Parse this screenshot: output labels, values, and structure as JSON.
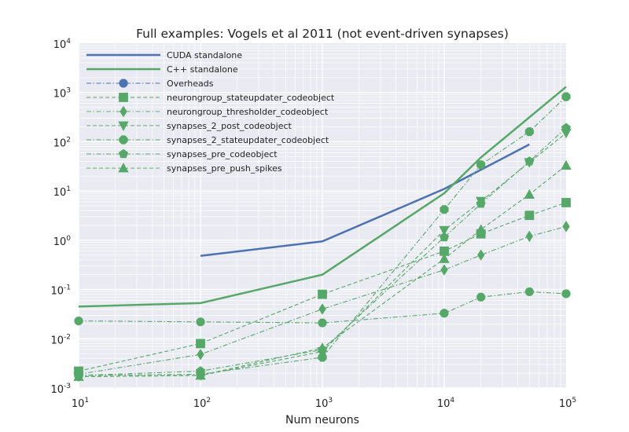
{
  "chart_data": {
    "type": "line",
    "title": "Full examples: Vogels et al 2011 (not event-driven synapses)",
    "xlabel": "Num neurons",
    "ylabel": "",
    "x_scale": "log",
    "y_scale": "log",
    "xlim": [
      10,
      100000
    ],
    "ylim": [
      0.001,
      10000
    ],
    "x_ticks": [
      {
        "base": "10",
        "exp": "1",
        "value": 10
      },
      {
        "base": "10",
        "exp": "2",
        "value": 100
      },
      {
        "base": "10",
        "exp": "3",
        "value": 1000
      },
      {
        "base": "10",
        "exp": "4",
        "value": 10000
      },
      {
        "base": "10",
        "exp": "5",
        "value": 100000
      }
    ],
    "y_ticks": [
      {
        "base": "10",
        "exp": "-3",
        "value": 0.001
      },
      {
        "base": "10",
        "exp": "-2",
        "value": 0.01
      },
      {
        "base": "10",
        "exp": "-1",
        "value": 0.1
      },
      {
        "base": "10",
        "exp": "0",
        "value": 1
      },
      {
        "base": "10",
        "exp": "1",
        "value": 10
      },
      {
        "base": "10",
        "exp": "2",
        "value": 100
      },
      {
        "base": "10",
        "exp": "3",
        "value": 1000
      },
      {
        "base": "10",
        "exp": "4",
        "value": 10000
      }
    ],
    "grid": true,
    "legend_position": "top-left",
    "background_color": "#eaeaf2",
    "series": [
      {
        "name": "CUDA standalone",
        "color": "#4c72b0",
        "line": "solid",
        "marker": "none",
        "points": [
          [
            100,
            0.48
          ],
          [
            1000,
            0.95
          ],
          [
            10000,
            11
          ],
          [
            20000,
            27
          ],
          [
            50000,
            88
          ]
        ]
      },
      {
        "name": "C++ standalone",
        "color": "#55a868",
        "line": "solid",
        "marker": "none",
        "points": [
          [
            10,
            0.045
          ],
          [
            100,
            0.053
          ],
          [
            1000,
            0.2
          ],
          [
            10000,
            9
          ],
          [
            20000,
            48
          ],
          [
            100000,
            1300
          ]
        ]
      },
      {
        "name": "Overheads",
        "color": "#4c72b0",
        "line": "dashdot",
        "marker": "circle",
        "points": []
      },
      {
        "name": "neurongroup_stateupdater_codeobject",
        "color": "#55a868",
        "line": "dashed",
        "marker": "square",
        "points": [
          [
            10,
            0.0022
          ],
          [
            100,
            0.008
          ],
          [
            1000,
            0.08
          ],
          [
            10000,
            0.6
          ],
          [
            20000,
            1.35
          ],
          [
            50000,
            3.2
          ],
          [
            100000,
            5.8
          ]
        ]
      },
      {
        "name": "neurongroup_thresholder_codeobject",
        "color": "#55a868",
        "line": "dashdot",
        "marker": "diamond",
        "points": [
          [
            10,
            0.0019
          ],
          [
            100,
            0.0048
          ],
          [
            1000,
            0.04
          ],
          [
            10000,
            0.25
          ],
          [
            20000,
            0.5
          ],
          [
            50000,
            1.2
          ],
          [
            100000,
            1.9
          ]
        ]
      },
      {
        "name": "synapses_2_post_codeobject",
        "color": "#55a868",
        "line": "dashed",
        "marker": "triangle-down",
        "points": [
          [
            10,
            0.0017
          ],
          [
            100,
            0.0018
          ],
          [
            1000,
            0.0055
          ],
          [
            10000,
            1.6
          ],
          [
            20000,
            6.2
          ],
          [
            50000,
            38
          ],
          [
            100000,
            150
          ]
        ]
      },
      {
        "name": "synapses_2_stateupdater_codeobject",
        "color": "#55a868",
        "line": "dashdot",
        "marker": "octagon",
        "points": [
          [
            10,
            0.0018
          ],
          [
            100,
            0.0019
          ],
          [
            1000,
            0.0042
          ],
          [
            10000,
            4.2
          ],
          [
            20000,
            34
          ],
          [
            50000,
            160
          ],
          [
            100000,
            820
          ]
        ]
      },
      {
        "name": "synapses_pre_codeobject",
        "color": "#55a868",
        "line": "dashdot",
        "marker": "pentagon",
        "points": [
          [
            10,
            0.0018
          ],
          [
            100,
            0.0022
          ],
          [
            1000,
            0.006
          ],
          [
            10000,
            1.15
          ],
          [
            20000,
            5.5
          ],
          [
            50000,
            40
          ],
          [
            100000,
            190
          ]
        ]
      },
      {
        "name": "synapses_pre_push_spikes",
        "color": "#55a868",
        "line": "dashed",
        "marker": "triangle-up",
        "points": [
          [
            10,
            0.0017
          ],
          [
            100,
            0.0018
          ],
          [
            1000,
            0.0065
          ],
          [
            10000,
            0.42
          ],
          [
            20000,
            1.65
          ],
          [
            50000,
            8.5
          ],
          [
            100000,
            33
          ]
        ]
      },
      {
        "name": "",
        "color": "#55a868",
        "line": "dashdot",
        "marker": "circle",
        "in_legend": false,
        "points": [
          [
            10,
            0.023
          ],
          [
            100,
            0.022
          ],
          [
            1000,
            0.021
          ],
          [
            10000,
            0.033
          ],
          [
            20000,
            0.07
          ],
          [
            50000,
            0.09
          ],
          [
            100000,
            0.082
          ]
        ]
      }
    ]
  }
}
